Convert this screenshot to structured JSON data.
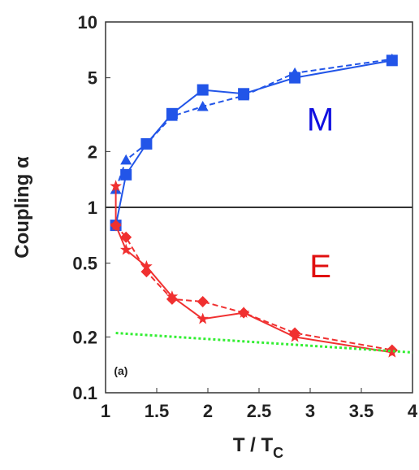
{
  "chart_data": {
    "type": "line",
    "x_label": "T / T",
    "x_label_sub": "C",
    "y_label": "Coupling α",
    "annotations": [
      {
        "text": "M",
        "x": 3.1,
        "y": 2.6,
        "color": "#1010e0"
      },
      {
        "text": "E",
        "x": 3.1,
        "y": 0.42,
        "color": "#e01010"
      },
      {
        "text": "(a)",
        "x": 1.15,
        "y": 0.125,
        "color": "#222222"
      }
    ],
    "xlim": [
      1,
      4
    ],
    "xticks": [
      1,
      1.5,
      2,
      2.5,
      3,
      3.5,
      4
    ],
    "ylim": [
      0.1,
      10
    ],
    "yticks": [
      0.1,
      0.2,
      0.5,
      1,
      2,
      5,
      10
    ],
    "log_y": true,
    "hline": 1,
    "series": [
      {
        "color": "#2255e8",
        "marker": "square",
        "dash": "solid",
        "x": [
          1.1,
          1.2,
          1.4,
          1.65,
          1.95,
          2.35,
          2.85,
          3.8
        ],
        "values": [
          0.8,
          1.5,
          2.2,
          3.2,
          4.3,
          4.1,
          5.0,
          6.2
        ]
      },
      {
        "color": "#2255e8",
        "marker": "triangle",
        "dash": "dashed",
        "x": [
          1.1,
          1.2,
          1.4,
          1.65,
          1.95,
          2.35,
          2.85,
          3.8
        ],
        "values": [
          1.25,
          1.8,
          2.2,
          3.1,
          3.5,
          4.0,
          5.3,
          6.3
        ]
      },
      {
        "color": "#f03030",
        "marker": "star",
        "dash": "solid",
        "x": [
          1.1,
          1.1,
          1.2,
          1.4,
          1.65,
          1.95,
          2.35,
          2.85,
          3.8
        ],
        "values": [
          1.3,
          0.8,
          0.59,
          0.48,
          0.33,
          0.25,
          0.27,
          0.2,
          0.165
        ]
      },
      {
        "color": "#f03030",
        "marker": "diamond",
        "dash": "dashed",
        "x": [
          1.1,
          1.2,
          1.4,
          1.65,
          1.95,
          2.35,
          2.85,
          3.8
        ],
        "values": [
          0.8,
          0.69,
          0.45,
          0.32,
          0.31,
          0.27,
          0.21,
          0.17
        ]
      },
      {
        "color": "#33ee33",
        "marker": "none",
        "dash": "dotted",
        "x": [
          1.1,
          4
        ],
        "values": [
          0.21,
          0.165
        ]
      }
    ]
  }
}
